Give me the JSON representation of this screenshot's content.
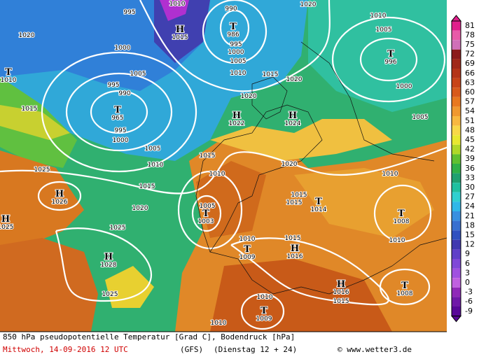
{
  "centers": [
    {
      "letter": "H",
      "value": 1015
    },
    {
      "letter": "T",
      "value": 986
    },
    {
      "letter": "T",
      "value": 1010
    },
    {
      "letter": "T",
      "value": 965
    },
    {
      "letter": "H",
      "value": 1022
    },
    {
      "letter": "H",
      "value": 1024
    },
    {
      "letter": "T",
      "value": 996
    },
    {
      "letter": "H",
      "value": 1026
    },
    {
      "letter": "H",
      "value": 1025
    },
    {
      "letter": "T",
      "value": 1003
    },
    {
      "letter": "T",
      "value": 1014
    },
    {
      "letter": "T",
      "value": 1008
    },
    {
      "letter": "H",
      "value": 1028
    },
    {
      "letter": "T",
      "value": 1009
    },
    {
      "letter": "H",
      "value": 1016
    },
    {
      "letter": "H",
      "value": 1016
    },
    {
      "letter": "T",
      "value": 1008
    },
    {
      "letter": "T",
      "value": 1009
    }
  ],
  "isobar_labels": [
    995,
    990,
    1020,
    1010,
    1005,
    1020,
    1000,
    995,
    1000,
    1005,
    1010,
    1015,
    1020,
    1000,
    1005,
    995,
    990,
    1015,
    1020,
    995,
    1000,
    1005,
    1010,
    1015,
    1020,
    1025,
    1010,
    1015,
    1010,
    1020,
    1005,
    1015,
    1015,
    1025,
    1010,
    1015,
    1010,
    1025,
    1010,
    1015,
    1010,
    1005,
    1010
  ],
  "colorbar": {
    "ticks": [
      81,
      78,
      75,
      72,
      69,
      66,
      63,
      60,
      57,
      54,
      51,
      48,
      45,
      42,
      39,
      36,
      33,
      30,
      27,
      24,
      21,
      18,
      15,
      12,
      9,
      6,
      3,
      0,
      -3,
      -6,
      -9
    ],
    "colors": [
      "#e0208c",
      "#e85aa8",
      "#d070b8",
      "#8c1c1c",
      "#a02818",
      "#b43418",
      "#c84418",
      "#d85a1c",
      "#e87820",
      "#f09830",
      "#f8b840",
      "#f8d848",
      "#e8e830",
      "#b0d828",
      "#60c030",
      "#30b048",
      "#20a070",
      "#20c0a0",
      "#30d0d0",
      "#30b8e8",
      "#3890e0",
      "#3870d0",
      "#3050c0",
      "#4038b0",
      "#6040c8",
      "#8048d8",
      "#a050e0",
      "#c060e0",
      "#9028b8",
      "#7018a8",
      "#580898"
    ]
  },
  "footer": {
    "line1": "850 hPa pseudopotentielle Temperatur [Grad C], Bodendruck [hPa]",
    "date": "Mittwoch, 14-09-2016  12 UTC",
    "model": "(GFS)",
    "run": "(Dienstag 12 + 24)",
    "source": "© www.wetter3.de"
  }
}
